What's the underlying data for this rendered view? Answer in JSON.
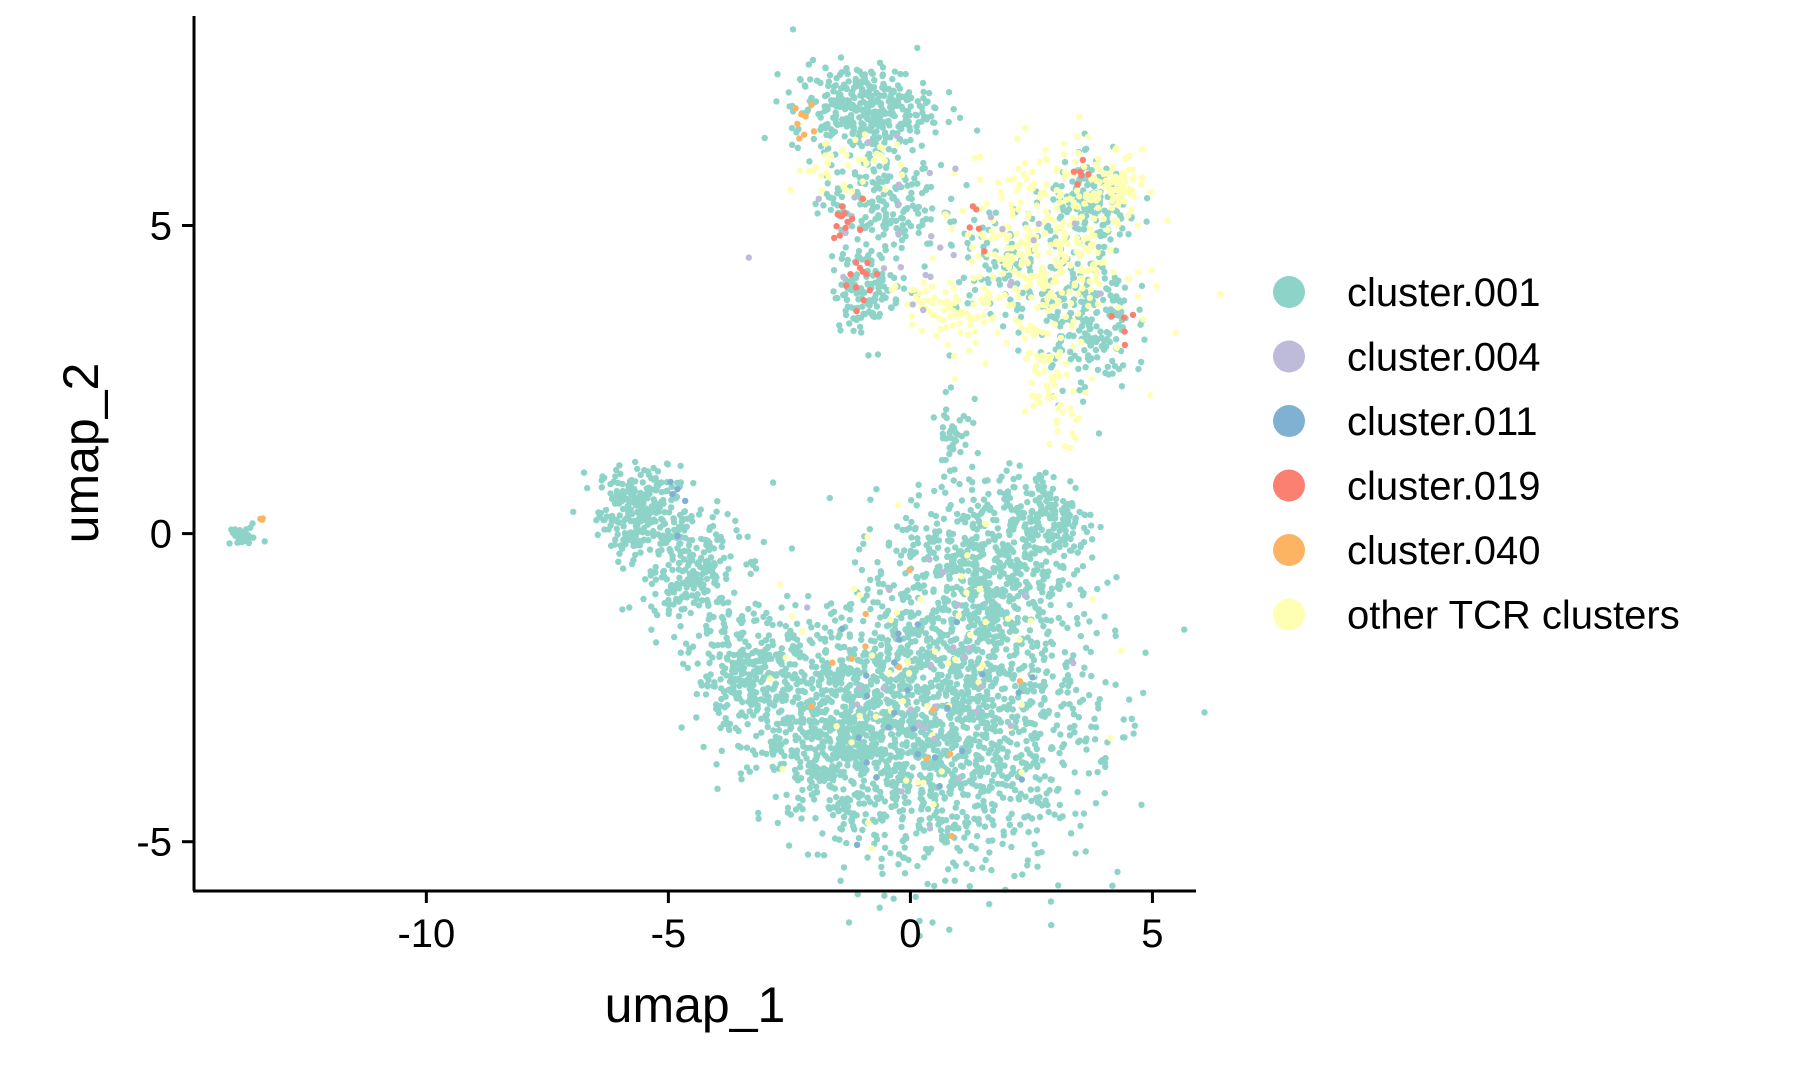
{
  "chart_data": {
    "type": "scatter",
    "title": "",
    "xlabel": "umap_1",
    "ylabel": "umap_2",
    "xlim": [
      -14.8,
      5.9
    ],
    "ylim": [
      -5.8,
      8.4
    ],
    "xticks": [
      -10,
      -5,
      0,
      5
    ],
    "xtick_labels": [
      "-10",
      "-5",
      "0",
      "5"
    ],
    "yticks": [
      -5,
      0,
      5
    ],
    "ytick_labels": [
      "-5",
      "0",
      "5"
    ],
    "grid": false,
    "legend_position": "right",
    "legend": [
      {
        "label": "cluster.001",
        "color": "#8dd3c7"
      },
      {
        "label": "cluster.004",
        "color": "#bebada"
      },
      {
        "label": "cluster.011",
        "color": "#80b1d3"
      },
      {
        "label": "cluster.019",
        "color": "#fb8072"
      },
      {
        "label": "cluster.040",
        "color": "#fdb462"
      },
      {
        "label": "other TCR clusters",
        "color": "#ffffb3"
      }
    ],
    "series": [
      {
        "name": "cluster.001",
        "color": "#8dd3c7",
        "regions": [
          {
            "cx": -13.8,
            "cy": -0.05,
            "rx": 0.35,
            "ry": 0.12,
            "n": 30
          },
          {
            "cx": -5.6,
            "cy": 0.4,
            "rx": 0.7,
            "ry": 0.6,
            "n": 250
          },
          {
            "cx": -4.6,
            "cy": -0.6,
            "rx": 0.9,
            "ry": 0.8,
            "n": 240
          },
          {
            "cx": -3.3,
            "cy": -2.3,
            "rx": 1.0,
            "ry": 0.8,
            "n": 300
          },
          {
            "cx": -1.5,
            "cy": -3.2,
            "rx": 1.3,
            "ry": 1.2,
            "n": 500
          },
          {
            "cx": 0.7,
            "cy": -3.0,
            "rx": 2.5,
            "ry": 2.0,
            "n": 1600
          },
          {
            "cx": 1.5,
            "cy": -0.6,
            "rx": 1.5,
            "ry": 1.2,
            "n": 500
          },
          {
            "cx": 2.9,
            "cy": 0.2,
            "rx": 0.8,
            "ry": 0.7,
            "n": 160
          },
          {
            "cx": 0.9,
            "cy": 1.7,
            "rx": 0.3,
            "ry": 0.8,
            "n": 45
          },
          {
            "cx": -1.0,
            "cy": 6.9,
            "rx": 1.2,
            "ry": 0.6,
            "n": 350
          },
          {
            "cx": -0.6,
            "cy": 5.4,
            "rx": 1.0,
            "ry": 0.7,
            "n": 180
          },
          {
            "cx": -0.9,
            "cy": 4.0,
            "rx": 0.6,
            "ry": 0.6,
            "n": 130
          },
          {
            "cx": 3.6,
            "cy": 3.5,
            "rx": 0.8,
            "ry": 1.0,
            "n": 220
          },
          {
            "cx": 3.8,
            "cy": 5.3,
            "rx": 0.8,
            "ry": 0.6,
            "n": 160
          },
          {
            "cx": 1.8,
            "cy": 4.5,
            "rx": 1.0,
            "ry": 0.9,
            "n": 90
          }
        ]
      },
      {
        "name": "other TCR clusters",
        "color": "#ffffb3",
        "regions": [
          {
            "cx": 2.8,
            "cy": 4.6,
            "rx": 1.4,
            "ry": 1.3,
            "n": 320
          },
          {
            "cx": 4.2,
            "cy": 5.6,
            "rx": 0.5,
            "ry": 0.4,
            "n": 90
          },
          {
            "cx": 0.7,
            "cy": 3.6,
            "rx": 0.8,
            "ry": 0.5,
            "n": 70
          },
          {
            "cx": -1.3,
            "cy": 6.0,
            "rx": 1.0,
            "ry": 0.4,
            "n": 40
          },
          {
            "cx": 0.5,
            "cy": -2.5,
            "rx": 2.5,
            "ry": 2.0,
            "n": 60
          },
          {
            "cx": 3.0,
            "cy": 2.5,
            "rx": 0.6,
            "ry": 0.8,
            "n": 60
          }
        ]
      },
      {
        "name": "cluster.004",
        "color": "#bebada",
        "regions": [
          {
            "cx": 0.5,
            "cy": 5.0,
            "rx": 2.5,
            "ry": 1.3,
            "n": 30
          },
          {
            "cx": 0.5,
            "cy": -2.5,
            "rx": 2.0,
            "ry": 1.8,
            "n": 25
          }
        ]
      },
      {
        "name": "cluster.011",
        "color": "#80b1d3",
        "regions": [
          {
            "cx": 0.5,
            "cy": -2.8,
            "rx": 2.0,
            "ry": 1.6,
            "n": 25
          },
          {
            "cx": -5.0,
            "cy": 0.5,
            "rx": 0.5,
            "ry": 0.4,
            "n": 5
          }
        ]
      },
      {
        "name": "cluster.019",
        "color": "#fb8072",
        "regions": [
          {
            "cx": -1.3,
            "cy": 5.1,
            "rx": 0.3,
            "ry": 0.3,
            "n": 12
          },
          {
            "cx": -1.0,
            "cy": 4.1,
            "rx": 0.3,
            "ry": 0.3,
            "n": 12
          },
          {
            "cx": 4.3,
            "cy": 3.3,
            "rx": 0.2,
            "ry": 0.3,
            "n": 5
          },
          {
            "cx": 3.6,
            "cy": 5.9,
            "rx": 0.3,
            "ry": 0.2,
            "n": 6
          },
          {
            "cx": 1.4,
            "cy": 5.0,
            "rx": 0.3,
            "ry": 0.3,
            "n": 5
          }
        ]
      },
      {
        "name": "cluster.040",
        "color": "#fdb462",
        "regions": [
          {
            "cx": -2.2,
            "cy": 6.7,
            "rx": 0.3,
            "ry": 0.3,
            "n": 8
          },
          {
            "cx": 0.0,
            "cy": -2.5,
            "rx": 2.0,
            "ry": 1.6,
            "n": 12
          },
          {
            "cx": -13.4,
            "cy": 0.25,
            "rx": 0.1,
            "ry": 0.05,
            "n": 3
          }
        ]
      }
    ]
  }
}
